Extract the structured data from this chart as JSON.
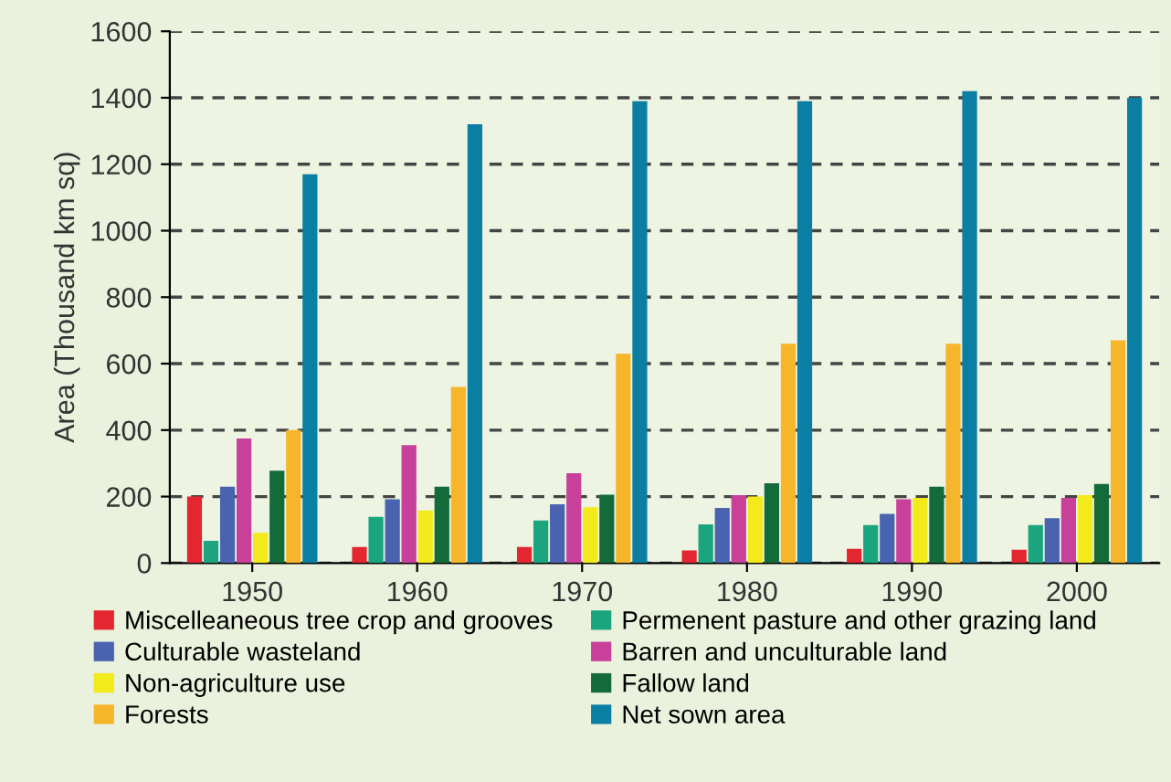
{
  "chart_data": {
    "type": "bar",
    "ylabel": "Area (Thousand km sq)",
    "categories": [
      "1950",
      "1960",
      "1970",
      "1980",
      "1990",
      "2000"
    ],
    "series": [
      {
        "name": "Miscelleaneous tree crop and grooves",
        "color": "#e3262f",
        "values": [
          200,
          48,
          48,
          38,
          43,
          40
        ]
      },
      {
        "name": "Permenent pasture and other grazing land",
        "color": "#1aa57f",
        "values": [
          67,
          139,
          128,
          116,
          114,
          114
        ]
      },
      {
        "name": "Culturable wasteland",
        "color": "#4a63b0",
        "values": [
          230,
          192,
          177,
          166,
          148,
          135
        ]
      },
      {
        "name": "Barren and unculturable land",
        "color": "#c8409a",
        "values": [
          375,
          355,
          270,
          204,
          192,
          196
        ]
      },
      {
        "name": "Non-agriculture use",
        "color": "#f2ea1a",
        "values": [
          91,
          158,
          168,
          200,
          196,
          204
        ]
      },
      {
        "name": "Fallow land",
        "color": "#136b3a",
        "values": [
          278,
          230,
          206,
          240,
          230,
          238
        ]
      },
      {
        "name": "Forests",
        "color": "#f7b52b",
        "values": [
          400,
          530,
          630,
          660,
          660,
          670
        ]
      },
      {
        "name": "Net sown area",
        "color": "#0b7ea3",
        "values": [
          1170,
          1320,
          1390,
          1390,
          1420,
          1400
        ]
      }
    ],
    "ylim": [
      0,
      1600
    ],
    "yticks": [
      0,
      200,
      400,
      600,
      800,
      1000,
      1200,
      1400,
      1600
    ],
    "grid": "y",
    "legend": "bottom"
  }
}
